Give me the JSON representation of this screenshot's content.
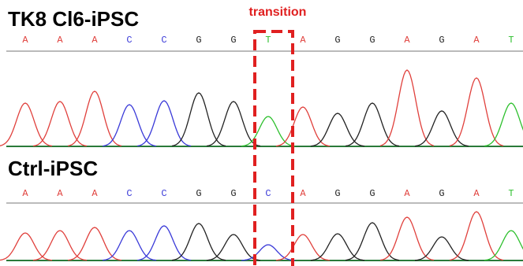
{
  "annotation": "transition",
  "base_colors": {
    "A": "#e0403c",
    "C": "#3a3ad8",
    "G": "#222222",
    "T": "#2cbf2c"
  },
  "panels": [
    {
      "title": "TK8 Cl6-iPSC",
      "bases": [
        "A",
        "A",
        "A",
        "C",
        "C",
        "G",
        "G",
        "T",
        "A",
        "G",
        "G",
        "A",
        "G",
        "A",
        "T"
      ],
      "intensities": [
        55,
        57,
        70,
        53,
        58,
        68,
        57,
        38,
        50,
        42,
        55,
        97,
        45,
        87,
        55
      ]
    },
    {
      "title": "Ctrl-iPSC",
      "bases": [
        "A",
        "A",
        "A",
        "C",
        "C",
        "G",
        "G",
        "C",
        "A",
        "G",
        "G",
        "A",
        "G",
        "A",
        "T"
      ],
      "intensities": [
        35,
        38,
        42,
        38,
        44,
        47,
        33,
        20,
        33,
        34,
        48,
        55,
        30,
        62,
        38
      ]
    }
  ]
}
